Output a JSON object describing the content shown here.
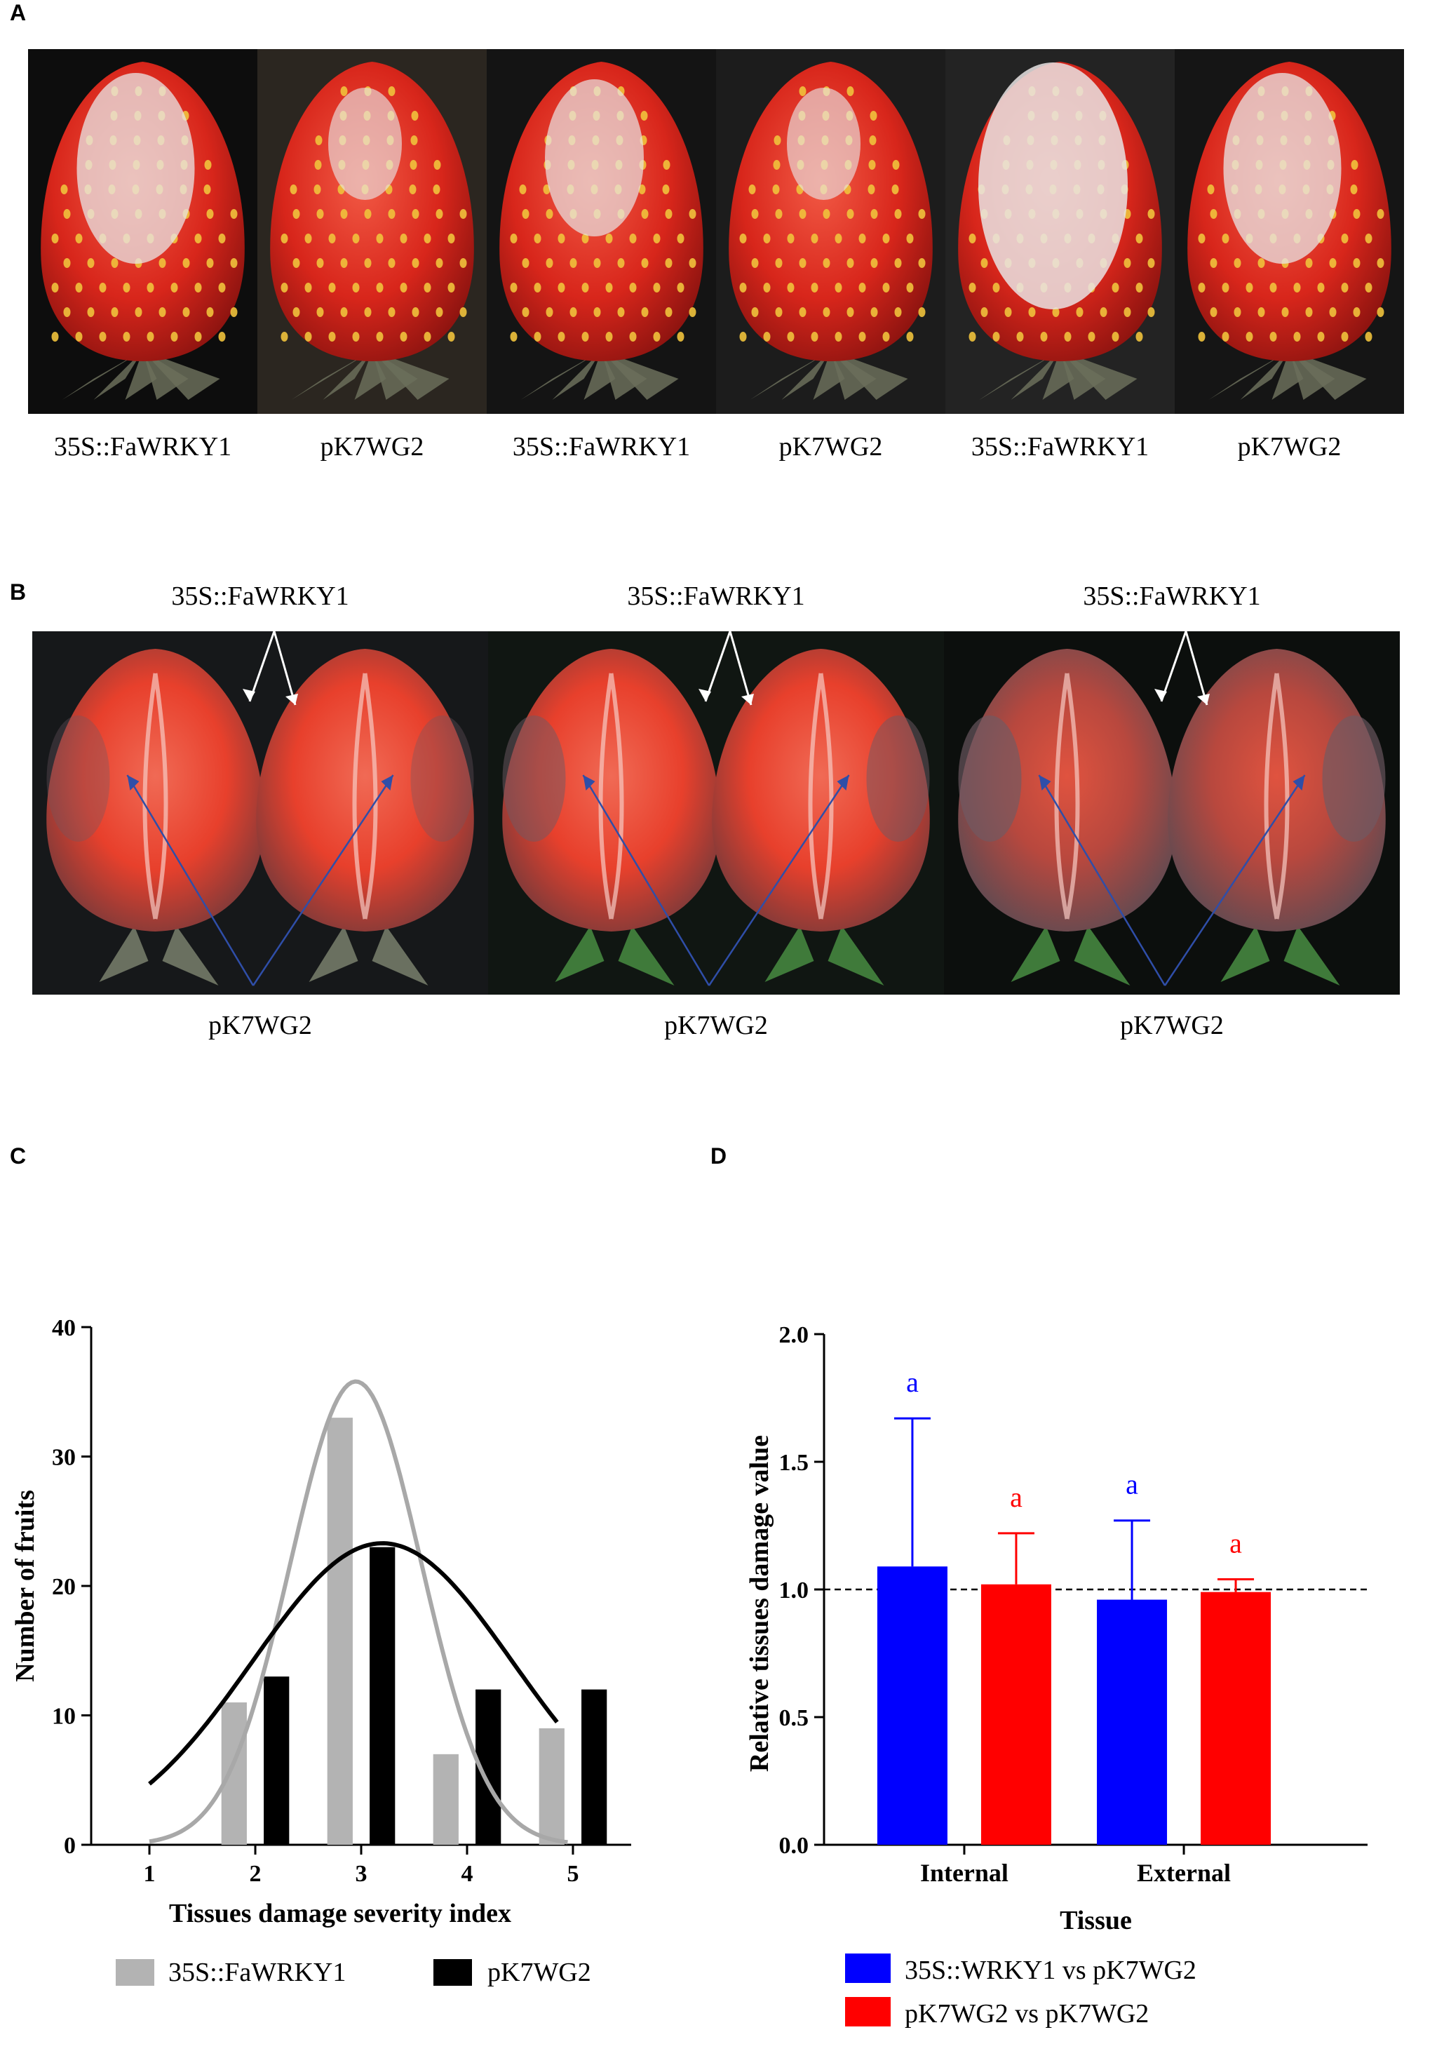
{
  "panels": {
    "a": {
      "letter": "A",
      "fruits": [
        {
          "label": "35S::FaWRKY1",
          "severity": "high"
        },
        {
          "label": "pK7WG2",
          "severity": "low"
        },
        {
          "label": "35S::FaWRKY1",
          "severity": "mid"
        },
        {
          "label": "pK7WG2",
          "severity": "low"
        },
        {
          "label": "35S::FaWRKY1",
          "severity": "severe"
        },
        {
          "label": "pK7WG2",
          "severity": "high"
        }
      ]
    },
    "b": {
      "letter": "B",
      "groups": [
        {
          "top_label": "35S::FaWRKY1",
          "bottom_label": "pK7WG2"
        },
        {
          "top_label": "35S::FaWRKY1",
          "bottom_label": "pK7WG2"
        },
        {
          "top_label": "35S::FaWRKY1",
          "bottom_label": "pK7WG2"
        }
      ]
    },
    "c": {
      "letter": "C"
    },
    "d": {
      "letter": "D"
    }
  },
  "chart_data": [
    {
      "id": "C",
      "type": "bar",
      "xlabel": "Tissues damage severity index",
      "ylabel": "Number of fruits",
      "categories": [
        "1",
        "2",
        "3",
        "4",
        "5"
      ],
      "x_ticks": [
        1,
        2,
        3,
        4,
        5
      ],
      "ylim": [
        0,
        40
      ],
      "y_ticks": [
        0,
        10,
        20,
        30,
        40
      ],
      "series": [
        {
          "name": "35S::FaWRKY1",
          "color": "#b3b3b3",
          "x": [
            2,
            3,
            4,
            5
          ],
          "values": [
            11,
            33,
            7,
            9
          ],
          "fit_curve": {
            "type": "gaussian",
            "mean": 2.95,
            "sd": 0.62,
            "peak": 35.8,
            "range": [
              1,
              4.95
            ]
          }
        },
        {
          "name": "pK7WG2",
          "color": "#000000",
          "x": [
            2,
            3,
            4,
            5
          ],
          "values": [
            13,
            23,
            12,
            12
          ],
          "fit_curve": {
            "type": "gaussian",
            "mean": 3.2,
            "sd": 1.23,
            "peak": 23.3,
            "range": [
              1,
              4.85
            ]
          }
        }
      ],
      "legend": [
        {
          "label": "35S::FaWRKY1",
          "color": "#b3b3b3"
        },
        {
          "label": "pK7WG2",
          "color": "#000000"
        }
      ]
    },
    {
      "id": "D",
      "type": "bar",
      "xlabel": "Tissue",
      "ylabel": "Relative tissues damage value",
      "categories": [
        "Internal",
        "External"
      ],
      "ylim": [
        0,
        2.0
      ],
      "y_ticks": [
        "0.0",
        "0.5",
        "1.0",
        "1.5",
        "2.0"
      ],
      "reference_line": 1.0,
      "series": [
        {
          "name": "35S::WRKY1 vs pK7WG2",
          "color": "#0000ff",
          "values": [
            1.09,
            0.96
          ],
          "error": [
            0.58,
            0.31
          ],
          "letters": [
            "a",
            "a"
          ]
        },
        {
          "name": "pK7WG2 vs pK7WG2",
          "color": "#ff0000",
          "values": [
            1.02,
            0.99
          ],
          "error": [
            0.2,
            0.05
          ],
          "letters": [
            "a",
            "a"
          ]
        }
      ],
      "legend": [
        {
          "label": "35S::WRKY1 vs pK7WG2",
          "color": "#0000ff"
        },
        {
          "label": "pK7WG2 vs pK7WG2",
          "color": "#ff0000"
        }
      ]
    }
  ]
}
